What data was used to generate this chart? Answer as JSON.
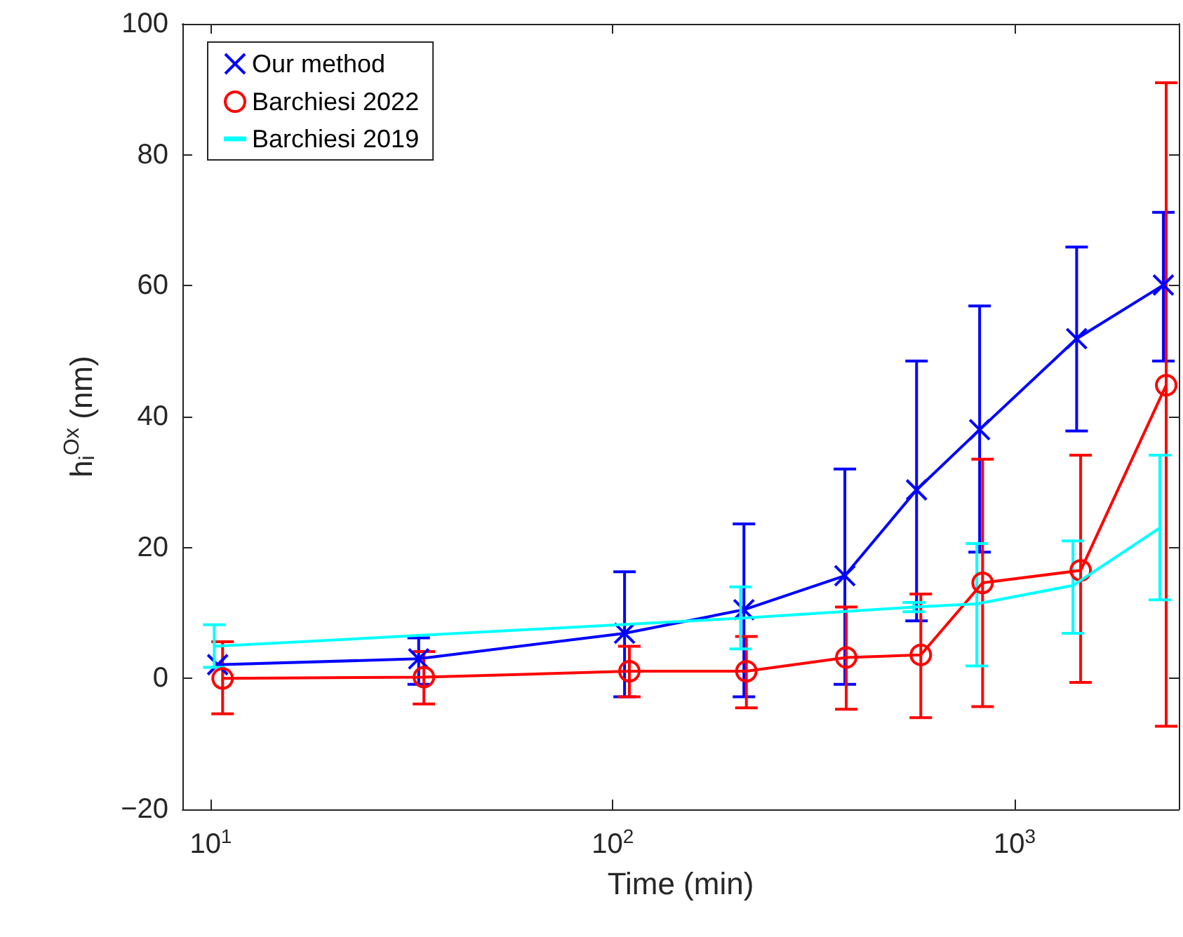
{
  "chart_data": {
    "type": "line",
    "xlabel": "Time (min)",
    "ylabel": "h$_{i}$$^{Ox}$ (nm)",
    "log": "x",
    "xlim": [
      8.5,
      2560
    ],
    "xticks": [
      {
        "value": 10,
        "label": "10$^{1}$"
      },
      {
        "value": 100,
        "label": "10$^{2}$"
      },
      {
        "value": 1000,
        "label": "10$^{3}$"
      }
    ],
    "ylim": [
      -20,
      100
    ],
    "yticks": [
      {
        "value": -20,
        "label": "−20"
      },
      0,
      20,
      40,
      60,
      80,
      100
    ],
    "grid": false,
    "legend": "top left",
    "series": [
      {
        "name": "Our method",
        "color": "#0000ff",
        "marker": "cross",
        "x": [
          10.4,
          32.9,
          107,
          212,
          378,
          570,
          818,
          1426,
          2344
        ],
        "values": [
          2.1,
          3.0,
          6.9,
          10.5,
          15.7,
          28.8,
          38.0,
          51.9,
          60.1
        ],
        "errors": [
          null,
          [
            -0.9,
            6.2
          ],
          [
            -2.8,
            16.3
          ],
          [
            -2.8,
            23.6
          ],
          [
            -0.9,
            32.0
          ],
          [
            8.8,
            48.5
          ],
          [
            19.3,
            56.9
          ],
          [
            37.8,
            65.9
          ],
          [
            48.5,
            71.2
          ]
        ]
      },
      {
        "name": "Barchiesi 2022",
        "color": "#ff0000",
        "marker": "circle",
        "x": [
          10.7,
          33.9,
          110,
          215,
          381,
          584,
          832,
          1459,
          2382
        ],
        "values": [
          0,
          0.2,
          1.1,
          1.1,
          3.2,
          3.6,
          14.6,
          16.5,
          44.8
        ],
        "errors": [
          [
            -5.4,
            5.6
          ],
          [
            -3.9,
            4.1
          ],
          [
            -2.8,
            4.9
          ],
          [
            -4.5,
            6.4
          ],
          [
            -4.7,
            10.9
          ],
          [
            -6.0,
            12.9
          ],
          [
            -4.3,
            33.5
          ],
          [
            -0.6,
            34.1
          ],
          [
            -7.3,
            91.0
          ]
        ]
      },
      {
        "name": "Barchiesi 2019",
        "color": "#00ffff",
        "marker": "none",
        "x": [
          10.2,
          208,
          561,
          805,
          1396,
          2297
        ],
        "values": [
          4.9,
          9.2,
          10.9,
          11.4,
          14.2,
          23.0
        ],
        "errors": [
          [
            1.7,
            8.2
          ],
          [
            4.5,
            14.0
          ],
          [
            10.2,
            11.6
          ],
          [
            1.9,
            20.6
          ],
          [
            6.9,
            21.0
          ],
          [
            12.0,
            34.1
          ]
        ]
      }
    ]
  }
}
